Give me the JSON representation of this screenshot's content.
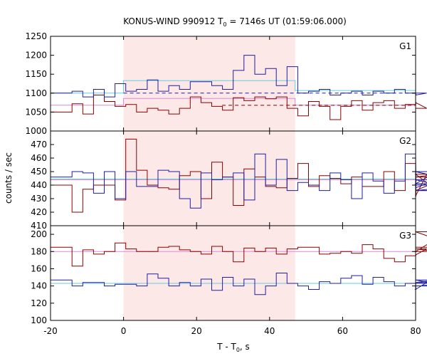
{
  "chart_data": {
    "type": "line",
    "title_prefix": "KONUS-WIND 990912 T",
    "title_sub": "0",
    "title_suffix": " = 7146s UT (01:59:06.000)",
    "xlabel_prefix": "T - T",
    "xlabel_sub": "0",
    "xlabel_suffix": ", s",
    "ylabel": "counts / sec",
    "xlim": [
      -20,
      80
    ],
    "x_ticks": [
      -20,
      0,
      20,
      40,
      60,
      80
    ],
    "highlight_interval": [
      0,
      47
    ],
    "bin_width": 2.944,
    "colors": {
      "red_series": "#8b0000",
      "blue_series": "#1f1fa0",
      "cyan_fit": "#66ccdd",
      "pink_fit": "#dd88dd",
      "highlight": "#fde8e8"
    },
    "panels": [
      {
        "label": "G1",
        "ylim": [
          1000,
          1250
        ],
        "y_ticks": [
          1000,
          1050,
          1100,
          1150,
          1200,
          1250
        ],
        "red": [
          1050,
          1050,
          1072,
          1045,
          1095,
          1078,
          1065,
          1070,
          1050,
          1060,
          1055,
          1045,
          1060,
          1090,
          1075,
          1065,
          1055,
          1088,
          1080,
          1090,
          1085,
          1090,
          1060,
          1040,
          1078,
          1065,
          1030,
          1065,
          1080,
          1055,
          1075,
          1080,
          1060,
          1070,
          1075,
          1060
        ],
        "blue": [
          1100,
          1100,
          1105,
          1090,
          1110,
          1090,
          1125,
          1105,
          1110,
          1135,
          1105,
          1120,
          1110,
          1130,
          1130,
          1120,
          1110,
          1160,
          1200,
          1150,
          1165,
          1120,
          1170,
          1100,
          1105,
          1110,
          1095,
          1100,
          1105,
          1095,
          1105,
          1100,
          1110,
          1100,
          1095,
          1100
        ],
        "red_mean": 1068,
        "blue_mean": 1100,
        "pink_levels": [
          [
            -20,
            1068
          ],
          [
            0,
            1068
          ],
          [
            0,
            1086
          ],
          [
            47,
            1086
          ],
          [
            47,
            1068
          ],
          [
            80,
            1068
          ]
        ],
        "cyan_levels": [
          [
            -20,
            1100
          ],
          [
            0,
            1100
          ],
          [
            0,
            1133
          ],
          [
            47,
            1133
          ],
          [
            47,
            1107
          ],
          [
            80,
            1107
          ]
        ]
      },
      {
        "label": "G2",
        "ylim": [
          410,
          480
        ],
        "y_ticks": [
          410,
          420,
          430,
          440,
          450,
          460,
          470
        ],
        "red": [
          440,
          440,
          420,
          437,
          440,
          440,
          429,
          474,
          451,
          440,
          438,
          437,
          447,
          450,
          430,
          457,
          446,
          425,
          452,
          446,
          439,
          438,
          445,
          456,
          439,
          447,
          445,
          441,
          446,
          439,
          439,
          450,
          436,
          456,
          432,
          448,
          436,
          446,
          450,
          441
        ],
        "blue": [
          446,
          446,
          450,
          449,
          434,
          450,
          430,
          450,
          439,
          439,
          451,
          450,
          430,
          423,
          449,
          444,
          446,
          449,
          429,
          463,
          440,
          459,
          436,
          442,
          440,
          436,
          449,
          444,
          430,
          449,
          443,
          434,
          443,
          463,
          438,
          441,
          450,
          444,
          436,
          440
        ],
        "red_mean": 444,
        "blue_mean": 444.5
      },
      {
        "label": "G3",
        "ylim": [
          100,
          210
        ],
        "y_ticks": [
          100,
          120,
          140,
          160,
          180,
          200
        ],
        "red": [
          185,
          185,
          163,
          182,
          177,
          180,
          190,
          183,
          180,
          180,
          185,
          186,
          182,
          180,
          177,
          186,
          180,
          168,
          184,
          180,
          184,
          177,
          183,
          185,
          185,
          177,
          178,
          180,
          178,
          188,
          183,
          172,
          168,
          175,
          176,
          183,
          180,
          203,
          185
        ],
        "blue": [
          147,
          147,
          140,
          144,
          144,
          140,
          142,
          142,
          140,
          154,
          149,
          140,
          144,
          140,
          148,
          135,
          150,
          140,
          148,
          130,
          140,
          155,
          143,
          140,
          136,
          145,
          143,
          149,
          152,
          142,
          150,
          145,
          140,
          143,
          136,
          144,
          147,
          140,
          143
        ],
        "red_mean": 180,
        "blue_mean": 143
      }
    ]
  }
}
